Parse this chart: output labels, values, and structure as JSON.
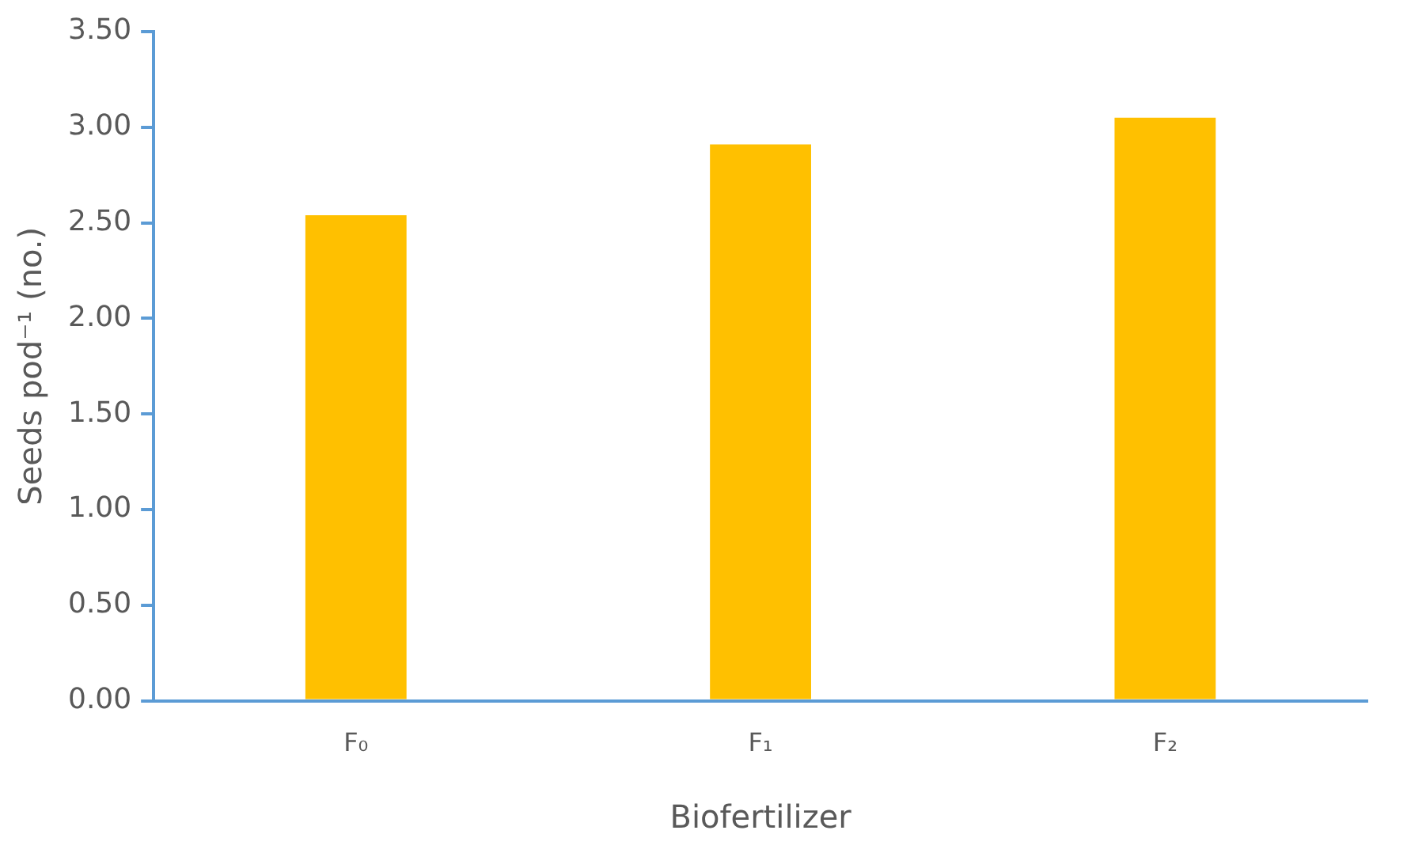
{
  "chart_data": {
    "type": "bar",
    "xlabel": "Biofertilizer",
    "ylabel": "Seeds pod⁻¹ (no.)",
    "categories": [
      "F₀",
      "F₁",
      "F₂"
    ],
    "values": [
      2.54,
      2.91,
      3.05
    ],
    "color": "#ffc000",
    "ylim": [
      0,
      3.5
    ],
    "yticks": [
      {
        "value": 0,
        "label": "0.00"
      },
      {
        "value": 0.5,
        "label": "0.50"
      },
      {
        "value": 1,
        "label": "1.00"
      },
      {
        "value": 1.5,
        "label": "1.50"
      },
      {
        "value": 2,
        "label": "2.00"
      },
      {
        "value": 2.5,
        "label": "2.50"
      },
      {
        "value": 3,
        "label": "3.00"
      },
      {
        "value": 3.5,
        "label": "3.50"
      }
    ],
    "grid": false,
    "legend": false
  }
}
